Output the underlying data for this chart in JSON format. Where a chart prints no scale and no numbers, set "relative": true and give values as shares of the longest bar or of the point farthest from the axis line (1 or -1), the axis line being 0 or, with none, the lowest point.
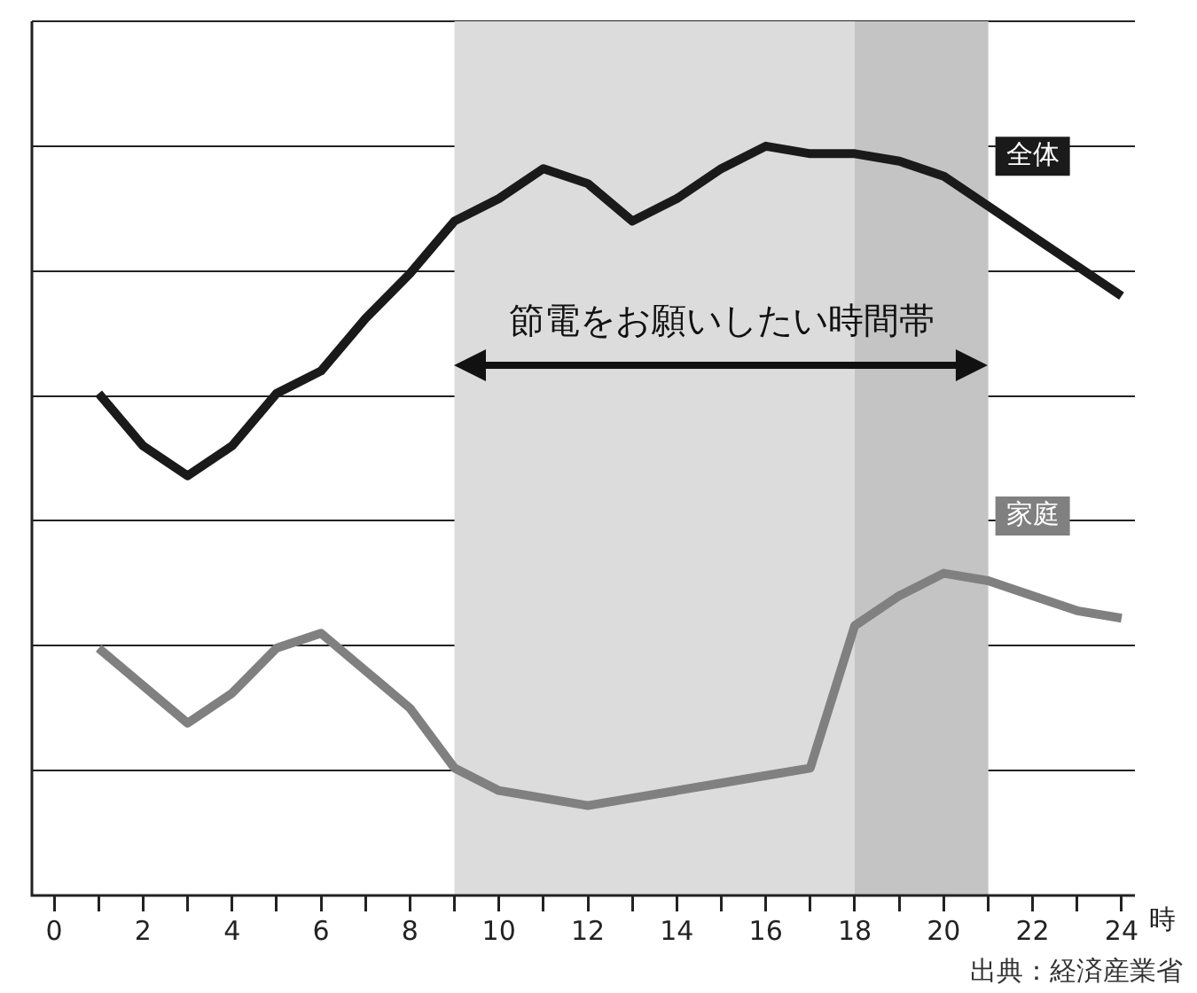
{
  "chart_data": {
    "type": "line",
    "relative": true,
    "xlabel": "時",
    "x": [
      1,
      2,
      3,
      4,
      5,
      6,
      7,
      8,
      9,
      10,
      11,
      12,
      13,
      14,
      15,
      16,
      17,
      18,
      19,
      20,
      21,
      22,
      23,
      24
    ],
    "xlim": [
      -0.5,
      24.3
    ],
    "xticks": [
      0,
      {
        "value": 1,
        "label": null
      },
      2,
      {
        "value": 3,
        "label": null
      },
      4,
      {
        "value": 5,
        "label": null
      },
      6,
      {
        "value": 7,
        "label": null
      },
      8,
      {
        "value": 9,
        "label": null
      },
      10,
      {
        "value": 11,
        "label": null
      },
      12,
      {
        "value": 13,
        "label": null
      },
      14,
      {
        "value": 15,
        "label": null
      },
      16,
      {
        "value": 17,
        "label": null
      },
      18,
      {
        "value": 19,
        "label": null
      },
      20,
      {
        "value": 21,
        "label": null
      },
      22,
      {
        "value": 23,
        "label": null
      },
      24
    ],
    "series": [
      {
        "name": "全体",
        "color": "#1a1a1a",
        "values": [
          0.67,
          0.6,
          0.56,
          0.6,
          0.67,
          0.7,
          0.77,
          0.83,
          0.9,
          0.93,
          0.97,
          0.95,
          0.9,
          0.93,
          0.97,
          1,
          0.99,
          0.99,
          0.98,
          0.96,
          0.92,
          0.88,
          0.84,
          0.8
        ]
      },
      {
        "name": "家庭",
        "color": "#808080",
        "values": [
          0.33,
          0.28,
          0.23,
          0.27,
          0.33,
          0.35,
          0.3,
          0.25,
          0.17,
          0.14,
          0.13,
          0.12,
          0.13,
          0.14,
          0.15,
          0.16,
          0.17,
          0.36,
          0.4,
          0.43,
          0.42,
          0.4,
          0.38,
          0.37
        ]
      }
    ],
    "bands": [
      {
        "axis": "x",
        "from": 9,
        "to": 21,
        "color": "#dcdcdc"
      },
      {
        "axis": "x",
        "from": 18,
        "to": 21,
        "color": "#c4c4c4"
      }
    ],
    "annotations": [
      "節電をお願いしたい時間帯",
      "出典：経済産業省"
    ],
    "grid": "y",
    "legend": false,
    "marker": "none",
    "line_style": "solid"
  }
}
